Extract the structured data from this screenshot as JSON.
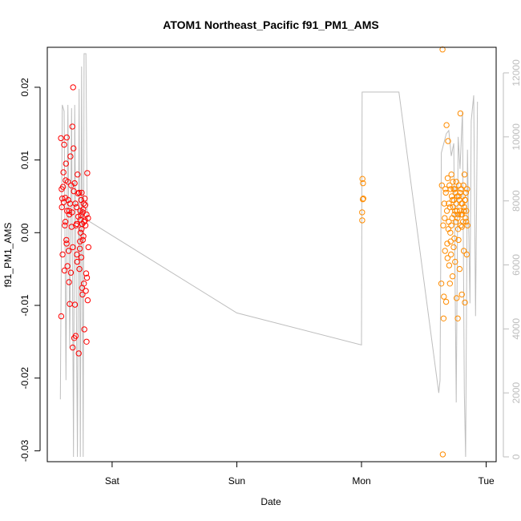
{
  "chart_data": {
    "type": "scatter",
    "title": "ATOM1 Northeast_Pacific f91_PM1_AMS",
    "xlabel": "Date",
    "ylabel": "f91_PM1_AMS",
    "x_ticks": [
      {
        "label": "Sat",
        "day": 1
      },
      {
        "label": "Sun",
        "day": 2
      },
      {
        "label": "Mon",
        "day": 3
      },
      {
        "label": "Tue",
        "day": 4
      }
    ],
    "xlim": [
      0.48,
      4.08
    ],
    "ylim": [
      -0.0315,
      0.0255
    ],
    "y_ticks": [
      -0.03,
      -0.02,
      -0.01,
      0.0,
      0.01,
      0.02
    ],
    "y_tick_labels": [
      "-0.03",
      "-0.02",
      "-0.01",
      "0.00",
      "0.01",
      "0.02"
    ],
    "y2lim": [
      -150,
      12800
    ],
    "y2_ticks": [
      0,
      2000,
      4000,
      6000,
      8000,
      10000,
      12000
    ],
    "y2_tick_labels": [
      "0",
      "2000",
      "4000",
      "6000",
      "8000",
      "10000",
      "12000"
    ],
    "colors": {
      "series_1": "#ff0000",
      "series_2": "#ff8c00",
      "line": "#bebebe"
    },
    "series": [
      {
        "marker": "circle",
        "color": "#ff0000",
        "points": [
          [
            0.59,
            0.013
          ],
          [
            0.592,
            -0.0115
          ],
          [
            0.595,
            0.006
          ],
          [
            0.597,
            0.0035
          ],
          [
            0.6,
            0.0047
          ],
          [
            0.603,
            -0.003
          ],
          [
            0.606,
            0.0063
          ],
          [
            0.609,
            0.0083
          ],
          [
            0.612,
            0.0042
          ],
          [
            0.615,
            0.0121
          ],
          [
            0.618,
            -0.0052
          ],
          [
            0.621,
            0.001
          ],
          [
            0.624,
            0.0048
          ],
          [
            0.627,
            0.0072
          ],
          [
            0.63,
            0.0095
          ],
          [
            0.633,
            -0.001
          ],
          [
            0.636,
            0.0131
          ],
          [
            0.639,
            0.003
          ],
          [
            0.642,
            -0.0046
          ],
          [
            0.645,
            0.007
          ],
          [
            0.648,
            0.0045
          ],
          [
            0.651,
            -0.0025
          ],
          [
            0.654,
            -0.0068
          ],
          [
            0.657,
            0.0025
          ],
          [
            0.66,
            -0.0098
          ],
          [
            0.663,
            0.004
          ],
          [
            0.666,
            0.0105
          ],
          [
            0.669,
            -0.0055
          ],
          [
            0.672,
            0.0065
          ],
          [
            0.675,
            0.0008
          ],
          [
            0.678,
            0.0028
          ],
          [
            0.681,
            0.0146
          ],
          [
            0.684,
            -0.0158
          ],
          [
            0.687,
            0.02
          ],
          [
            0.69,
            0.0116
          ],
          [
            0.693,
            0.0057
          ],
          [
            0.696,
            -0.0145
          ],
          [
            0.699,
            0.0068
          ],
          [
            0.702,
            -0.0099
          ],
          [
            0.705,
            0.004
          ],
          [
            0.708,
            -0.0142
          ],
          [
            0.711,
            0.001
          ],
          [
            0.714,
            0.0035
          ],
          [
            0.717,
            -0.003
          ],
          [
            0.72,
            -0.004
          ],
          [
            0.723,
            0.008
          ],
          [
            0.726,
            0.0054
          ],
          [
            0.729,
            0.0022
          ],
          [
            0.732,
            -0.0166
          ],
          [
            0.735,
            0.0055
          ],
          [
            0.738,
            -0.005
          ],
          [
            0.741,
            -0.0022
          ],
          [
            0.744,
            0.003
          ],
          [
            0.747,
            0.0
          ],
          [
            0.75,
            0.0024
          ],
          [
            0.753,
            -0.0034
          ],
          [
            0.756,
            0.0055
          ],
          [
            0.759,
            -0.0076
          ],
          [
            0.762,
            -0.0085
          ],
          [
            0.765,
            -0.001
          ],
          [
            0.768,
            0.0032
          ],
          [
            0.771,
            0.004
          ],
          [
            0.774,
            -0.007
          ],
          [
            0.777,
            -0.0133
          ],
          [
            0.78,
            0.0047
          ],
          [
            0.783,
            0.0017
          ],
          [
            0.786,
            0.001
          ],
          [
            0.789,
            -0.008
          ],
          [
            0.792,
            -0.0056
          ],
          [
            0.795,
            -0.015
          ],
          [
            0.798,
            -0.0062
          ],
          [
            0.801,
            0.0082
          ],
          [
            0.804,
            -0.0093
          ],
          [
            0.807,
            0.002
          ],
          [
            0.81,
            -0.002
          ],
          [
            0.625,
            0.0015
          ],
          [
            0.635,
            -0.0015
          ],
          [
            0.655,
            0.003
          ],
          [
            0.685,
            -0.002
          ],
          [
            0.715,
            0.0012
          ],
          [
            0.745,
            0.0018
          ],
          [
            0.755,
            0.0005
          ],
          [
            0.765,
            0.0028
          ],
          [
            0.775,
            0.0015
          ],
          [
            0.785,
            0.0038
          ],
          [
            0.795,
            0.0025
          ],
          [
            0.76,
            0.0012
          ],
          [
            0.77,
            -0.0005
          ],
          [
            0.742,
            -0.0012
          ],
          [
            0.752,
            0.0045
          ]
        ]
      },
      {
        "marker": "circle",
        "color": "#ff8c00",
        "points": [
          [
            3.005,
            0.0028
          ],
          [
            3.008,
            0.0074
          ],
          [
            3.01,
            0.0046
          ],
          [
            3.012,
            0.0068
          ],
          [
            3.006,
            0.0017
          ],
          [
            3.015,
            0.0047
          ],
          [
            3.64,
            -0.007
          ],
          [
            3.645,
            0.0065
          ],
          [
            3.65,
            0.0252
          ],
          [
            3.652,
            -0.0305
          ],
          [
            3.655,
            0.001
          ],
          [
            3.658,
            -0.0118
          ],
          [
            3.661,
            -0.0088
          ],
          [
            3.664,
            0.004
          ],
          [
            3.667,
            0.002
          ],
          [
            3.67,
            -0.0025
          ],
          [
            3.673,
            0.006
          ],
          [
            3.676,
            0.0055
          ],
          [
            3.679,
            -0.0095
          ],
          [
            3.682,
            0.0148
          ],
          [
            3.685,
            0.003
          ],
          [
            3.688,
            -0.0015
          ],
          [
            3.691,
            0.0075
          ],
          [
            3.694,
            0.0126
          ],
          [
            3.697,
            0.0005
          ],
          [
            3.7,
            0.004
          ],
          [
            3.703,
            -0.0045
          ],
          [
            3.706,
            0.0065
          ],
          [
            3.709,
            -0.007
          ],
          [
            3.712,
            0.0
          ],
          [
            3.715,
            0.006
          ],
          [
            3.718,
            -0.003
          ],
          [
            3.721,
            0.008
          ],
          [
            3.724,
            0.005
          ],
          [
            3.727,
            0.002
          ],
          [
            3.73,
            -0.006
          ],
          [
            3.733,
            0.007
          ],
          [
            3.736,
            0.0035
          ],
          [
            3.739,
            -0.002
          ],
          [
            3.742,
            0.0045
          ],
          [
            3.745,
            0.0025
          ],
          [
            3.748,
            0.006
          ],
          [
            3.751,
            -0.004
          ],
          [
            3.754,
            0.0055
          ],
          [
            3.757,
            0.0015
          ],
          [
            3.76,
            0.007
          ],
          [
            3.763,
            -0.009
          ],
          [
            3.766,
            0.003
          ],
          [
            3.769,
            0.005
          ],
          [
            3.772,
            -0.0118
          ],
          [
            3.775,
            0.0025
          ],
          [
            3.778,
            -0.001
          ],
          [
            3.781,
            0.0065
          ],
          [
            3.784,
            0.0045
          ],
          [
            3.787,
            -0.005
          ],
          [
            3.79,
            0.003
          ],
          [
            3.793,
            0.0164
          ],
          [
            3.796,
            0.001
          ],
          [
            3.799,
            0.006
          ],
          [
            3.802,
            0.004
          ],
          [
            3.805,
            -0.0085
          ],
          [
            3.808,
            0.0025
          ],
          [
            3.811,
            0.005
          ],
          [
            3.814,
            0.0015
          ],
          [
            3.817,
            0.0065
          ],
          [
            3.82,
            -0.0025
          ],
          [
            3.823,
            0.0035
          ],
          [
            3.826,
            0.008
          ],
          [
            3.829,
            -0.0096
          ],
          [
            3.832,
            0.0045
          ],
          [
            3.835,
            0.002
          ],
          [
            3.838,
            0.0055
          ],
          [
            3.841,
            0.003
          ],
          [
            3.844,
            -0.003
          ],
          [
            3.847,
            0.006
          ],
          [
            3.85,
            0.001
          ],
          [
            3.7,
            0.0015
          ],
          [
            3.71,
            0.0035
          ],
          [
            3.72,
            0.001
          ],
          [
            3.73,
            0.0045
          ],
          [
            3.74,
            0.006
          ],
          [
            3.75,
            0.003
          ],
          [
            3.76,
            0.004
          ],
          [
            3.77,
            0.002
          ],
          [
            3.78,
            0.005
          ],
          [
            3.79,
            0.0055
          ],
          [
            3.8,
            0.0025
          ],
          [
            3.81,
            0.004
          ],
          [
            3.82,
            0.003
          ],
          [
            3.83,
            0.0045
          ],
          [
            3.84,
            0.0015
          ],
          [
            3.69,
            -0.0035
          ],
          [
            3.715,
            -0.0012
          ],
          [
            3.745,
            -0.0008
          ],
          [
            3.775,
            0.0005
          ],
          [
            3.805,
            0.0008
          ]
        ]
      }
    ],
    "line_series_y2": {
      "color": "#bebebe",
      "points": [
        [
          0.585,
          1800
        ],
        [
          0.6,
          11000
        ],
        [
          0.615,
          10800
        ],
        [
          0.63,
          2400
        ],
        [
          0.645,
          11000
        ],
        [
          0.66,
          3400
        ],
        [
          0.675,
          10900
        ],
        [
          0.69,
          0
        ],
        [
          0.7,
          11000
        ],
        [
          0.71,
          6200
        ],
        [
          0.722,
          0
        ],
        [
          0.735,
          11500
        ],
        [
          0.745,
          0
        ],
        [
          0.755,
          12200
        ],
        [
          0.768,
          0
        ],
        [
          0.775,
          12600
        ],
        [
          0.79,
          12600
        ],
        [
          0.8,
          7400
        ],
        [
          2.0,
          4500
        ],
        [
          3.0,
          3500
        ],
        [
          3.005,
          11400
        ],
        [
          3.3,
          11400
        ],
        [
          3.62,
          2000
        ],
        [
          3.63,
          2400
        ],
        [
          3.64,
          9500
        ],
        [
          3.66,
          9800
        ],
        [
          3.68,
          10100
        ],
        [
          3.7,
          10200
        ],
        [
          3.72,
          9400
        ],
        [
          3.74,
          9800
        ],
        [
          3.76,
          1700
        ],
        [
          3.775,
          10000
        ],
        [
          3.79,
          9000
        ],
        [
          3.81,
          10800
        ],
        [
          3.825,
          2000
        ],
        [
          3.835,
          0
        ],
        [
          3.85,
          9600
        ],
        [
          3.87,
          4800
        ],
        [
          3.88,
          10500
        ],
        [
          3.9,
          11300
        ],
        [
          3.915,
          4400
        ],
        [
          3.93,
          11100
        ]
      ]
    }
  }
}
